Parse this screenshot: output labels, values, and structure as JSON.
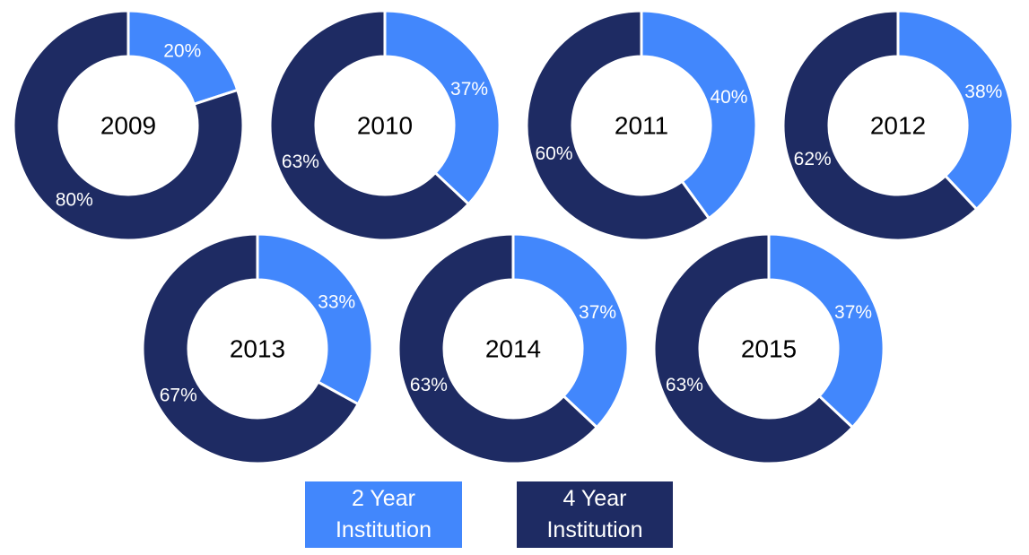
{
  "chart_data": {
    "type": "donut",
    "colors": {
      "two_year": "#4287fc",
      "four_year": "#1e2b63"
    },
    "legend": [
      {
        "key": "two_year",
        "label": "2 Year Institution"
      },
      {
        "key": "four_year",
        "label": "4 Year Institution"
      }
    ],
    "charts": [
      {
        "year": "2009",
        "two_year": 20,
        "four_year": 80,
        "two_label": "20%",
        "four_label": "80%"
      },
      {
        "year": "2010",
        "two_year": 37,
        "four_year": 63,
        "two_label": "37%",
        "four_label": "63%"
      },
      {
        "year": "2011",
        "two_year": 40,
        "four_year": 60,
        "two_label": "40%",
        "four_label": "60%"
      },
      {
        "year": "2012",
        "two_year": 38,
        "four_year": 62,
        "two_label": "38%",
        "four_label": "62%"
      },
      {
        "year": "2013",
        "two_year": 33,
        "four_year": 67,
        "two_label": "33%",
        "four_label": "67%"
      },
      {
        "year": "2014",
        "two_year": 37,
        "four_year": 63,
        "two_label": "37%",
        "four_label": "63%"
      },
      {
        "year": "2015",
        "two_year": 37,
        "four_year": 63,
        "two_label": "37%",
        "four_label": "63%"
      }
    ]
  }
}
